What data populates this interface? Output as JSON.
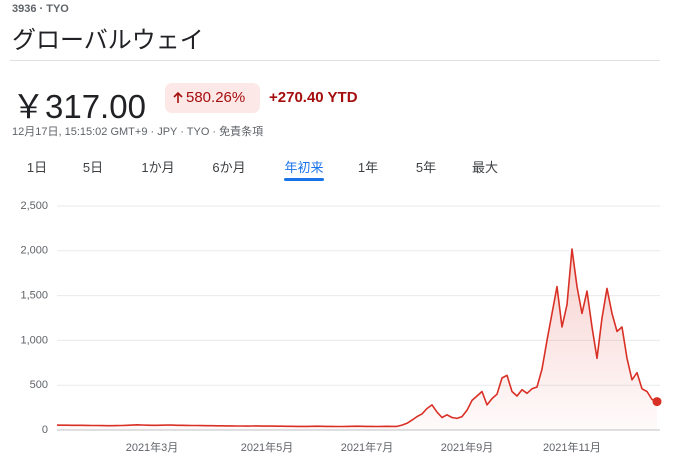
{
  "header": {
    "ticker": "3936 · TYO",
    "name": "グローバルウェイ",
    "price": "￥317.00",
    "change_pct": "580.26%",
    "change_abs": "+270.40 YTD",
    "timestamp": "12月17日, 15:15:02 GMT+9 · JPY · TYO · 免責条項"
  },
  "tabs": [
    "1日",
    "5日",
    "1か月",
    "6か月",
    "年初来",
    "1年",
    "5年",
    "最大"
  ],
  "chart_data": {
    "type": "line",
    "categories": [
      null,
      null,
      null,
      null,
      null,
      null,
      null,
      null,
      null,
      null,
      null,
      null,
      null,
      null,
      null,
      null,
      null,
      null,
      null,
      "2021年3月",
      null,
      null,
      null,
      null,
      null,
      null,
      null,
      null,
      null,
      null,
      null,
      null,
      null,
      null,
      null,
      null,
      null,
      null,
      null,
      null,
      null,
      null,
      "2021年5月",
      null,
      null,
      null,
      null,
      null,
      null,
      null,
      null,
      null,
      null,
      null,
      null,
      null,
      null,
      null,
      null,
      null,
      null,
      null,
      "2021年7月",
      null,
      null,
      null,
      null,
      null,
      null,
      null,
      null,
      null,
      null,
      null,
      null,
      null,
      null,
      null,
      null,
      null,
      null,
      null,
      "2021年9月",
      null,
      null,
      null,
      null,
      null,
      null,
      null,
      null,
      null,
      null,
      null,
      null,
      null,
      null,
      null,
      null,
      null,
      null,
      null,
      null,
      "2021年11月",
      null,
      null,
      null,
      null,
      null,
      null,
      null,
      null,
      null,
      null,
      null,
      null,
      null,
      null,
      null,
      null,
      null
    ],
    "series": [
      {
        "color": "#d93025",
        "values": [
          55,
          54,
          54,
          53,
          52,
          52,
          51,
          50,
          50,
          49,
          48,
          48,
          49,
          50,
          52,
          55,
          58,
          56,
          54,
          53,
          52,
          54,
          56,
          55,
          53,
          52,
          51,
          50,
          50,
          49,
          48,
          48,
          47,
          47,
          46,
          46,
          45,
          45,
          44,
          45,
          46,
          44,
          43,
          43,
          42,
          42,
          41,
          41,
          40,
          40,
          40,
          41,
          42,
          41,
          40,
          40,
          39,
          39,
          40,
          41,
          42,
          41,
          40,
          40,
          39,
          40,
          41,
          40,
          40,
          55,
          75,
          110,
          150,
          180,
          240,
          280,
          200,
          140,
          170,
          140,
          130,
          150,
          220,
          330,
          380,
          430,
          280,
          350,
          400,
          580,
          610,
          430,
          380,
          450,
          410,
          460,
          480,
          680,
          1000,
          1300,
          1600,
          1150,
          1400,
          2020,
          1600,
          1300,
          1550,
          1150,
          800,
          1250,
          1580,
          1300,
          1100,
          1150,
          800,
          560,
          640,
          460,
          430,
          340,
          317
        ]
      }
    ],
    "ylim": [
      0,
      2500
    ],
    "yticks": [
      0,
      500,
      {
        "value": 1000,
        "label": "1,000"
      },
      {
        "value": 1500,
        "label": "1,500"
      },
      {
        "value": 2000,
        "label": "2,000"
      },
      {
        "value": 2500,
        "label": "2,500"
      }
    ],
    "grid": true
  }
}
